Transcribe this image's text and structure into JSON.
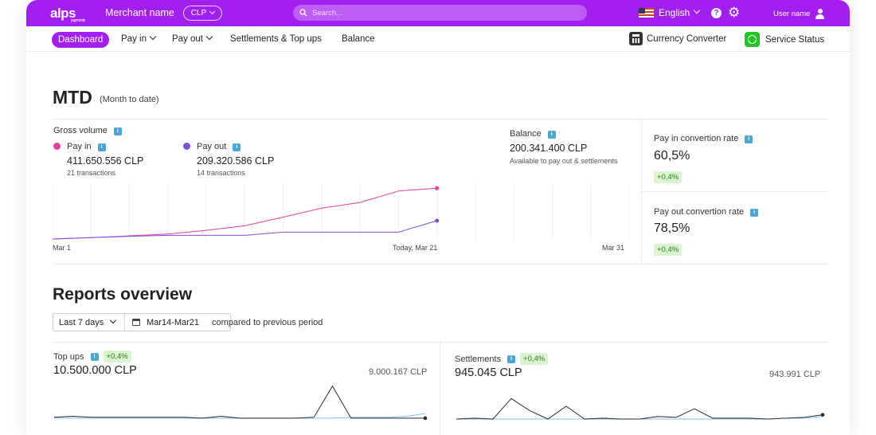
{
  "topbar": {
    "logo": "alps",
    "logo_sub": "payments",
    "merchant": "Merchant name",
    "currency": "CLP",
    "search_placeholder": "Search...",
    "language": "English",
    "user": "User name",
    "accent_color": "#a31ff0"
  },
  "subnav": {
    "dashboard": "Dashboard",
    "pay_in": "Pay in",
    "pay_out": "Pay out",
    "settlements": "Settlements & Top ups",
    "balance": "Balance",
    "currency_converter": "Currency Converter",
    "service_status": "Service Status"
  },
  "mtd": {
    "title": "MTD",
    "subtitle": "(Month to date)",
    "gross_volume_label": "Gross volume",
    "pay_in": {
      "label": "Pay in",
      "amount": "411.650.556 CLP",
      "transactions": "21 transactions",
      "color": "#e83e9c"
    },
    "pay_out": {
      "label": "Pay out",
      "amount": "209.320.586 CLP",
      "transactions": "14 transactions",
      "color": "#7b4fe0"
    },
    "balance": {
      "label": "Balance",
      "amount": "200.341.400 CLP",
      "note": "Available to pay out & settlements"
    },
    "payin_rate": {
      "label": "Pay in convertion rate",
      "value": "60,5%",
      "change": "+0,4%"
    },
    "payout_rate": {
      "label": "Pay out convertion rate",
      "value": "78,5%",
      "change": "+0,4%"
    },
    "axis": {
      "start": "Mar 1",
      "today": "Today, Mar 21",
      "end": "Mar 31"
    }
  },
  "reports": {
    "title": "Reports overview",
    "period": "Last 7 days",
    "range": "Mar14-Mar21",
    "compare": "compared to previous period",
    "topups": {
      "label": "Top ups",
      "change": "+0,4%",
      "value": "10.500.000 CLP",
      "previous": "9.000.167 CLP"
    },
    "settlements": {
      "label": "Settlements",
      "change": "+0,4%",
      "value": "945.045 CLP",
      "previous": "943.991 CLP"
    }
  },
  "chart_data": [
    {
      "type": "line",
      "x": [
        1,
        3,
        5,
        7,
        9,
        11,
        13,
        15,
        17,
        19,
        21
      ],
      "series": [
        {
          "name": "Pay in",
          "values": [
            0,
            6,
            14,
            22,
            38,
            58,
            96,
            135,
            160,
            210,
            222
          ],
          "color": "#e83e9c"
        },
        {
          "name": "Pay out",
          "values": [
            0,
            6,
            12,
            16,
            16,
            16,
            30,
            30,
            30,
            30,
            80
          ],
          "color": "#7b4fe0"
        }
      ],
      "xlim": [
        1,
        31
      ],
      "ylim": [
        0,
        230
      ]
    },
    {
      "type": "line",
      "x": [
        1,
        2,
        3,
        4,
        5,
        6,
        7,
        8,
        9,
        10,
        11,
        12,
        13,
        14,
        15,
        16,
        17,
        18,
        19,
        20,
        21
      ],
      "series": [
        {
          "values": [
            2,
            3,
            2,
            2,
            2,
            2,
            2,
            2,
            1,
            3,
            1,
            1,
            1,
            1,
            2,
            36,
            1,
            1,
            1,
            1,
            1
          ],
          "color": "#2a2a2a"
        },
        {
          "values": [
            1,
            1,
            1,
            1,
            1,
            1,
            1,
            1,
            1,
            1,
            1,
            1,
            1,
            1,
            1,
            1,
            2,
            2,
            2,
            3,
            6
          ],
          "color": "#7cc4e8"
        }
      ],
      "ylim": [
        0,
        40
      ]
    },
    {
      "type": "line",
      "x": [
        1,
        2,
        3,
        4,
        5,
        6,
        7,
        8,
        9,
        10,
        11,
        12,
        13,
        14,
        15,
        16,
        17,
        18,
        19,
        20,
        21
      ],
      "series": [
        {
          "values": [
            0,
            1,
            0,
            24,
            10,
            0,
            15,
            0,
            1,
            0,
            0,
            3,
            2,
            12,
            1,
            1,
            1,
            0,
            1,
            2,
            5
          ],
          "color": "#2a2a2a"
        },
        {
          "values": [
            0,
            0,
            0,
            0,
            0,
            0,
            0,
            0,
            0,
            0,
            0,
            0,
            0,
            0,
            0,
            0,
            0,
            0,
            1,
            1,
            3
          ],
          "color": "#7cc4e8"
        }
      ],
      "ylim": [
        0,
        28
      ]
    }
  ]
}
